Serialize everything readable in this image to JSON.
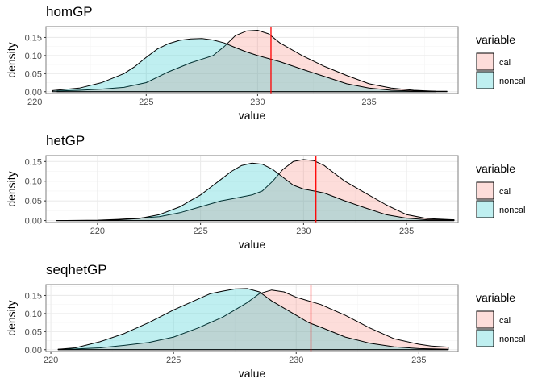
{
  "legend": {
    "title": "variable",
    "placement": "right",
    "entries": [
      {
        "label": "cal",
        "fill": "#F8766D"
      },
      {
        "label": "noncal",
        "fill": "#00BFC4"
      }
    ]
  },
  "colors": {
    "vline": "#FF0000",
    "panel_border": "#7f7f7f",
    "grid_major": "#ebebeb",
    "grid_minor": "#f5f5f5",
    "curve": "#000000"
  },
  "chart_data": [
    {
      "type": "area",
      "title": "homGP",
      "xlabel": "value",
      "ylabel": "density",
      "xlim": [
        220.5,
        239
      ],
      "ylim": [
        -0.005,
        0.18
      ],
      "xticks": [
        220,
        225,
        230,
        235
      ],
      "yticks": [
        0.0,
        0.05,
        0.1,
        0.15
      ],
      "ytick_labels": [
        "0.00",
        "0.05",
        "0.10",
        "0.15"
      ],
      "grid": true,
      "vline": 230.6,
      "series": [
        {
          "name": "cal",
          "x": [
            221,
            222,
            223,
            224,
            225,
            226,
            227,
            228,
            228.5,
            229,
            229.5,
            230,
            230.5,
            231,
            232,
            233,
            234,
            235,
            236,
            237,
            238,
            238.5
          ],
          "y": [
            0.002,
            0.004,
            0.007,
            0.012,
            0.025,
            0.055,
            0.08,
            0.1,
            0.125,
            0.155,
            0.168,
            0.17,
            0.16,
            0.135,
            0.1,
            0.07,
            0.045,
            0.022,
            0.01,
            0.004,
            0.001,
            0.001
          ]
        },
        {
          "name": "noncal",
          "x": [
            220.8,
            222,
            223,
            224,
            224.5,
            225,
            225.5,
            226,
            226.5,
            227,
            227.5,
            228,
            228.5,
            229,
            229.5,
            230,
            231,
            232,
            233,
            234,
            235,
            236,
            237,
            238
          ],
          "y": [
            0.003,
            0.01,
            0.025,
            0.05,
            0.07,
            0.095,
            0.118,
            0.133,
            0.142,
            0.146,
            0.147,
            0.143,
            0.135,
            0.122,
            0.11,
            0.1,
            0.083,
            0.062,
            0.042,
            0.022,
            0.01,
            0.004,
            0.002,
            0.001
          ]
        }
      ]
    },
    {
      "type": "area",
      "title": "hetGP",
      "xlabel": "value",
      "ylabel": "density",
      "xlim": [
        217.5,
        237.5
      ],
      "ylim": [
        -0.005,
        0.165
      ],
      "xticks": [
        220,
        225,
        230,
        235
      ],
      "yticks": [
        0.0,
        0.05,
        0.1,
        0.15
      ],
      "ytick_labels": [
        "0.00",
        "0.05",
        "0.10",
        "0.15"
      ],
      "grid": true,
      "vline": 230.6,
      "series": [
        {
          "name": "cal",
          "x": [
            218,
            220,
            221,
            222,
            223,
            224,
            225,
            226,
            226.5,
            227,
            227.5,
            228,
            228.5,
            229,
            229.5,
            230,
            230.5,
            231,
            231.5,
            232,
            233,
            234,
            235,
            236,
            237.3
          ],
          "y": [
            0.0,
            0.001,
            0.003,
            0.006,
            0.01,
            0.02,
            0.035,
            0.05,
            0.055,
            0.06,
            0.065,
            0.075,
            0.1,
            0.13,
            0.15,
            0.155,
            0.152,
            0.14,
            0.12,
            0.1,
            0.07,
            0.04,
            0.015,
            0.005,
            0.002
          ]
        },
        {
          "name": "noncal",
          "x": [
            218,
            220,
            221,
            222,
            223,
            224,
            224.5,
            225,
            225.5,
            226,
            226.5,
            227,
            227.5,
            228,
            228.5,
            229,
            229.5,
            230,
            230.5,
            231,
            232,
            233,
            234,
            235,
            236,
            237.3
          ],
          "y": [
            0.0,
            0.0,
            0.002,
            0.005,
            0.015,
            0.035,
            0.05,
            0.065,
            0.085,
            0.105,
            0.125,
            0.14,
            0.146,
            0.143,
            0.13,
            0.11,
            0.09,
            0.08,
            0.075,
            0.07,
            0.05,
            0.032,
            0.015,
            0.006,
            0.002,
            0.002
          ]
        }
      ]
    },
    {
      "type": "area",
      "title": "seqhetGP",
      "xlabel": "value",
      "ylabel": "density",
      "xlim": [
        219.8,
        236.6
      ],
      "ylim": [
        -0.005,
        0.18
      ],
      "xticks": [
        220,
        225,
        230,
        235
      ],
      "yticks": [
        0.0,
        0.05,
        0.1,
        0.15
      ],
      "ytick_labels": [
        "0.00",
        "0.05",
        "0.10",
        "0.15"
      ],
      "grid": true,
      "vline": 230.6,
      "series": [
        {
          "name": "cal",
          "x": [
            220.3,
            221,
            222,
            223,
            224,
            225,
            226,
            227,
            227.5,
            228,
            228.5,
            229,
            229.5,
            230,
            231,
            232,
            233,
            234,
            235,
            235.5,
            236.2
          ],
          "y": [
            0.001,
            0.002,
            0.005,
            0.012,
            0.02,
            0.035,
            0.06,
            0.09,
            0.11,
            0.13,
            0.155,
            0.165,
            0.16,
            0.145,
            0.125,
            0.095,
            0.06,
            0.03,
            0.015,
            0.01,
            0.007
          ]
        },
        {
          "name": "noncal",
          "x": [
            220.3,
            221,
            222,
            223,
            224,
            225,
            226,
            226.5,
            227,
            227.5,
            228,
            228.5,
            229,
            230,
            230.5,
            231,
            232,
            233,
            234,
            235,
            236.2
          ],
          "y": [
            0.001,
            0.005,
            0.022,
            0.045,
            0.075,
            0.11,
            0.14,
            0.155,
            0.162,
            0.168,
            0.169,
            0.16,
            0.135,
            0.095,
            0.075,
            0.062,
            0.035,
            0.018,
            0.008,
            0.003,
            0.001
          ]
        }
      ]
    }
  ]
}
